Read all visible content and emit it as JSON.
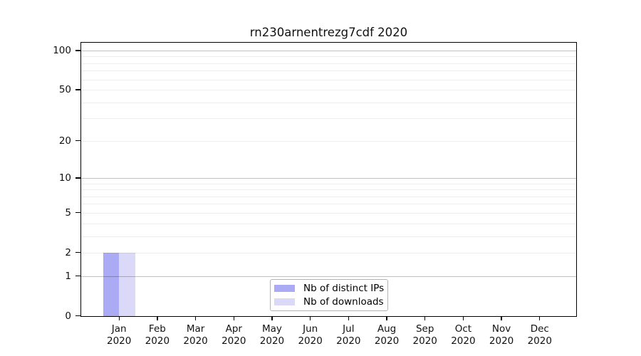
{
  "chart_data": {
    "type": "bar",
    "title": "rn230arnentrezg7cdf 2020",
    "x": {
      "months": [
        "Jan",
        "Feb",
        "Mar",
        "Apr",
        "May",
        "Jun",
        "Jul",
        "Aug",
        "Sep",
        "Oct",
        "Nov",
        "Dec"
      ],
      "year": "2020"
    },
    "series": [
      {
        "name": "Nb of distinct IPs",
        "color": "#aaaaf5",
        "values": [
          2,
          0,
          0,
          0,
          0,
          0,
          0,
          0,
          0,
          0,
          0,
          0
        ]
      },
      {
        "name": "Nb of downloads",
        "color": "#dadaf8",
        "values": [
          2,
          0,
          0,
          0,
          0,
          0,
          0,
          0,
          0,
          0,
          0,
          0
        ]
      }
    ],
    "yscale": "log10(1+y)",
    "ylim": [
      0,
      116
    ],
    "yticks": [
      0,
      1,
      2,
      5,
      10,
      20,
      50,
      100
    ],
    "major_gridlines": [
      1,
      10,
      100
    ],
    "minor_gridlines": [
      2,
      3,
      4,
      5,
      6,
      7,
      8,
      9,
      20,
      30,
      40,
      50,
      60,
      70,
      80,
      90
    ],
    "grid": true,
    "legend_position": "lower center"
  }
}
